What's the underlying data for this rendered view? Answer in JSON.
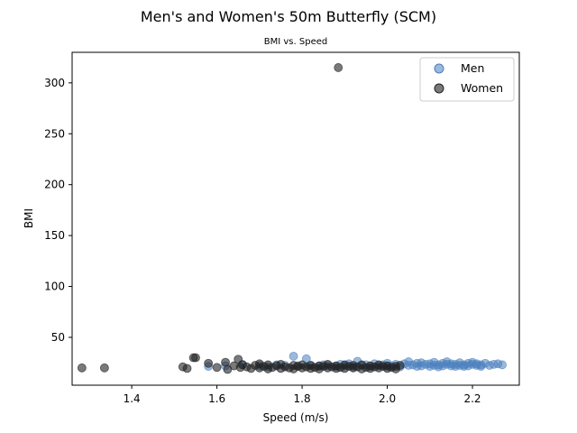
{
  "chart_data": {
    "type": "scatter",
    "title": "Men's and Women's 50m Butterfly (SCM)",
    "subtitle": "BMI vs. Speed",
    "xlabel": "Speed (m/s)",
    "ylabel": "BMI",
    "xlim": [
      1.26,
      2.31
    ],
    "ylim": [
      3,
      330
    ],
    "xticks": [
      "1.4",
      "1.6",
      "1.8",
      "2.0",
      "2.2"
    ],
    "xtick_values": [
      1.4,
      1.6,
      1.8,
      2.0,
      2.2
    ],
    "yticks": [
      "50",
      "100",
      "150",
      "200",
      "250",
      "300"
    ],
    "ytick_values": [
      50,
      100,
      150,
      200,
      250,
      300
    ],
    "legend": {
      "placement": "top-right",
      "entries": [
        "Men",
        "Women"
      ]
    },
    "series": [
      {
        "name": "Men",
        "color": "#4a7fbd",
        "alpha": 0.55,
        "points": [
          [
            1.58,
            21.5
          ],
          [
            1.62,
            22.0
          ],
          [
            1.66,
            23.5
          ],
          [
            1.7,
            22.0
          ],
          [
            1.72,
            21.0
          ],
          [
            1.74,
            23.0
          ],
          [
            1.76,
            22.5
          ],
          [
            1.78,
            31.5
          ],
          [
            1.79,
            22.0
          ],
          [
            1.81,
            29.0
          ],
          [
            1.82,
            22.5
          ],
          [
            1.84,
            21.5
          ],
          [
            1.85,
            23.0
          ],
          [
            1.86,
            22.0
          ],
          [
            1.88,
            21.5
          ],
          [
            1.89,
            23.5
          ],
          [
            1.9,
            22.0
          ],
          [
            1.91,
            24.0
          ],
          [
            1.92,
            21.0
          ],
          [
            1.93,
            26.5
          ],
          [
            1.94,
            22.5
          ],
          [
            1.95,
            23.0
          ],
          [
            1.96,
            21.5
          ],
          [
            1.97,
            24.0
          ],
          [
            1.98,
            22.0
          ],
          [
            1.99,
            23.0
          ],
          [
            2.0,
            21.5
          ],
          [
            2.0,
            24.5
          ],
          [
            2.01,
            22.0
          ],
          [
            2.02,
            23.5
          ],
          [
            2.03,
            21.0
          ],
          [
            2.04,
            24.0
          ],
          [
            2.05,
            22.5
          ],
          [
            2.05,
            26.0
          ],
          [
            2.06,
            23.0
          ],
          [
            2.07,
            21.5
          ],
          [
            2.07,
            24.5
          ],
          [
            2.08,
            22.0
          ],
          [
            2.08,
            25.0
          ],
          [
            2.09,
            23.5
          ],
          [
            2.1,
            21.5
          ],
          [
            2.1,
            24.0
          ],
          [
            2.11,
            22.5
          ],
          [
            2.11,
            25.5
          ],
          [
            2.12,
            23.0
          ],
          [
            2.12,
            21.0
          ],
          [
            2.13,
            24.5
          ],
          [
            2.13,
            22.0
          ],
          [
            2.14,
            23.5
          ],
          [
            2.14,
            26.0
          ],
          [
            2.15,
            22.0
          ],
          [
            2.15,
            24.0
          ],
          [
            2.16,
            21.5
          ],
          [
            2.16,
            23.5
          ],
          [
            2.17,
            25.0
          ],
          [
            2.17,
            22.5
          ],
          [
            2.18,
            23.0
          ],
          [
            2.18,
            21.5
          ],
          [
            2.19,
            24.5
          ],
          [
            2.19,
            22.0
          ],
          [
            2.2,
            23.5
          ],
          [
            2.2,
            25.5
          ],
          [
            2.21,
            22.5
          ],
          [
            2.21,
            24.0
          ],
          [
            2.22,
            23.0
          ],
          [
            2.22,
            21.5
          ],
          [
            2.23,
            24.5
          ],
          [
            2.24,
            22.5
          ],
          [
            2.25,
            23.5
          ],
          [
            2.26,
            24.0
          ],
          [
            2.27,
            23.0
          ]
        ]
      },
      {
        "name": "Women",
        "color": "#222222",
        "alpha": 0.6,
        "points": [
          [
            1.283,
            20.0
          ],
          [
            1.336,
            20.0
          ],
          [
            1.52,
            21.0
          ],
          [
            1.53,
            19.5
          ],
          [
            1.545,
            30.0
          ],
          [
            1.55,
            30.0
          ],
          [
            1.58,
            24.5
          ],
          [
            1.6,
            20.5
          ],
          [
            1.62,
            25.5
          ],
          [
            1.625,
            18.5
          ],
          [
            1.64,
            22.0
          ],
          [
            1.65,
            28.5
          ],
          [
            1.655,
            20.5
          ],
          [
            1.66,
            23.0
          ],
          [
            1.67,
            21.0
          ],
          [
            1.68,
            19.5
          ],
          [
            1.69,
            22.5
          ],
          [
            1.7,
            20.0
          ],
          [
            1.7,
            24.0
          ],
          [
            1.71,
            21.5
          ],
          [
            1.72,
            19.0
          ],
          [
            1.72,
            23.0
          ],
          [
            1.73,
            20.5
          ],
          [
            1.74,
            22.0
          ],
          [
            1.75,
            19.5
          ],
          [
            1.75,
            23.5
          ],
          [
            1.76,
            21.0
          ],
          [
            1.77,
            20.0
          ],
          [
            1.78,
            22.5
          ],
          [
            1.78,
            19.0
          ],
          [
            1.79,
            21.5
          ],
          [
            1.8,
            20.0
          ],
          [
            1.8,
            23.0
          ],
          [
            1.81,
            21.0
          ],
          [
            1.82,
            19.5
          ],
          [
            1.82,
            22.5
          ],
          [
            1.83,
            20.5
          ],
          [
            1.84,
            22.0
          ],
          [
            1.84,
            19.0
          ],
          [
            1.85,
            21.5
          ],
          [
            1.86,
            20.0
          ],
          [
            1.86,
            23.5
          ],
          [
            1.87,
            21.0
          ],
          [
            1.88,
            19.5
          ],
          [
            1.88,
            22.0
          ],
          [
            1.885,
            315.0
          ],
          [
            1.89,
            20.5
          ],
          [
            1.9,
            23.0
          ],
          [
            1.9,
            19.5
          ],
          [
            1.91,
            21.5
          ],
          [
            1.92,
            20.0
          ],
          [
            1.92,
            22.5
          ],
          [
            1.93,
            21.0
          ],
          [
            1.94,
            19.0
          ],
          [
            1.94,
            23.0
          ],
          [
            1.95,
            20.5
          ],
          [
            1.96,
            22.0
          ],
          [
            1.96,
            19.5
          ],
          [
            1.97,
            21.0
          ],
          [
            1.98,
            23.0
          ],
          [
            1.98,
            20.0
          ],
          [
            1.99,
            21.5
          ],
          [
            2.0,
            19.5
          ],
          [
            2.0,
            22.0
          ],
          [
            2.01,
            20.5
          ],
          [
            2.02,
            21.5
          ],
          [
            2.02,
            19.0
          ],
          [
            2.03,
            22.5
          ]
        ]
      }
    ]
  }
}
